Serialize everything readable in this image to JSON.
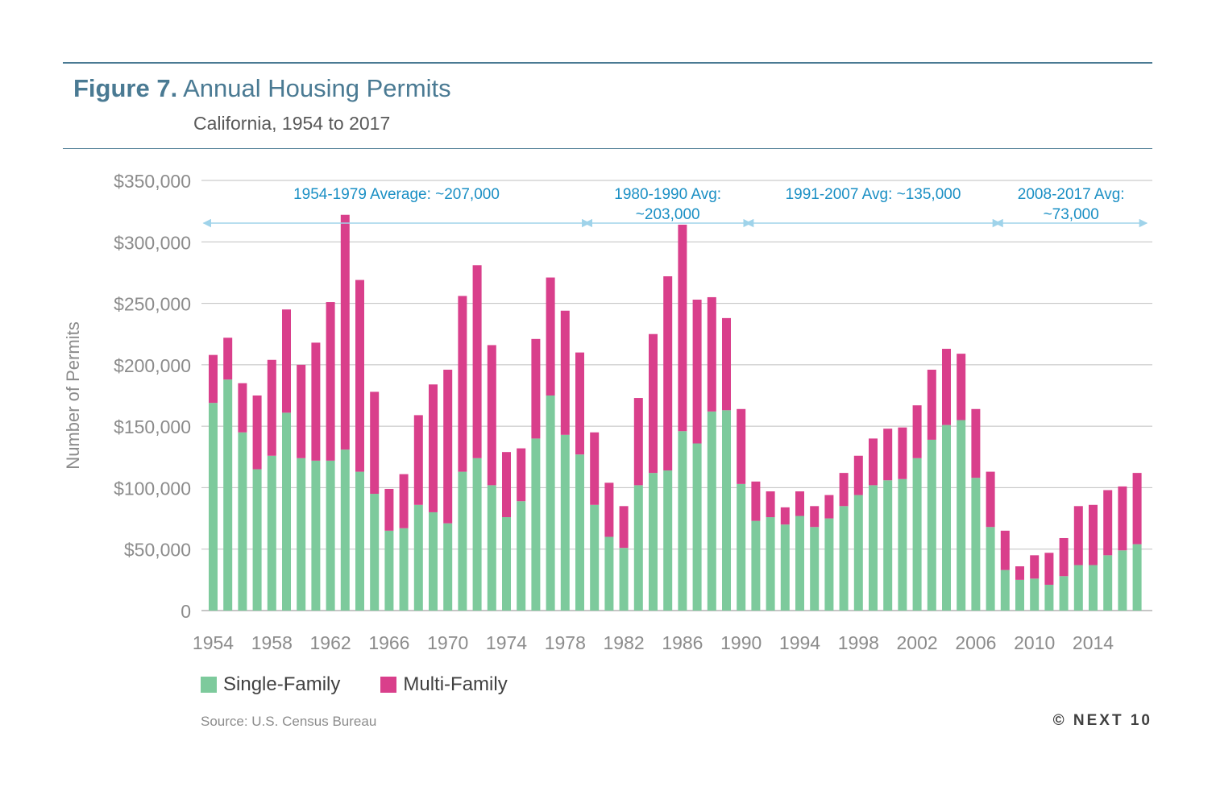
{
  "figure": {
    "label": "Figure 7.",
    "title": "Annual Housing Permits",
    "subtitle": "California, 1954 to 2017"
  },
  "legend": {
    "single": "Single-Family",
    "multi": "Multi-Family"
  },
  "source": "Source: U.S. Census Bureau",
  "brand": "© NEXT 10",
  "colors": {
    "single": "#7dca9c",
    "multi": "#d93f8b",
    "annotation": "#1a8fc4",
    "arrow": "#9fd3ea",
    "grid": "#bfbfbf",
    "axis_text": "#8c8c8c"
  },
  "chart_data": {
    "type": "bar",
    "stacked": true,
    "ylabel": "Number of Permits",
    "ylim": [
      0,
      350000
    ],
    "y_ticks": [
      "0",
      "$50,000",
      "$100,000",
      "$150,000",
      "$200,000",
      "$250,000",
      "$300,000",
      "$350,000"
    ],
    "y_tick_values": [
      0,
      50000,
      100000,
      150000,
      200000,
      250000,
      300000,
      350000
    ],
    "x_tick_labels": [
      "1954",
      "1958",
      "1962",
      "1966",
      "1970",
      "1974",
      "1978",
      "1982",
      "1986",
      "1990",
      "1994",
      "1998",
      "2002",
      "2006",
      "2010",
      "2014"
    ],
    "categories": [
      1954,
      1955,
      1956,
      1957,
      1958,
      1959,
      1960,
      1961,
      1962,
      1963,
      1964,
      1965,
      1966,
      1967,
      1968,
      1969,
      1970,
      1971,
      1972,
      1973,
      1974,
      1975,
      1976,
      1977,
      1978,
      1979,
      1980,
      1981,
      1982,
      1983,
      1984,
      1985,
      1986,
      1987,
      1988,
      1989,
      1990,
      1991,
      1992,
      1993,
      1994,
      1995,
      1996,
      1997,
      1998,
      1999,
      2000,
      2001,
      2002,
      2003,
      2004,
      2005,
      2006,
      2007,
      2008,
      2009,
      2010,
      2011,
      2012,
      2013,
      2014,
      2015,
      2016,
      2017
    ],
    "series": [
      {
        "name": "Single-Family",
        "color": "#7dca9c",
        "values": [
          169000,
          188000,
          145000,
          115000,
          126000,
          161000,
          124000,
          122000,
          122000,
          131000,
          113000,
          95000,
          65000,
          67000,
          86000,
          80000,
          71000,
          113000,
          124000,
          102000,
          76000,
          89000,
          140000,
          175000,
          143000,
          127000,
          86000,
          60000,
          51000,
          102000,
          112000,
          114000,
          146000,
          136000,
          162000,
          163000,
          103000,
          73000,
          76000,
          70000,
          77000,
          68000,
          75000,
          85000,
          94000,
          102000,
          106000,
          107000,
          124000,
          139000,
          151000,
          155000,
          108000,
          68000,
          33000,
          25000,
          26000,
          21000,
          28000,
          37000,
          37000,
          45000,
          49000,
          54000
        ]
      },
      {
        "name": "Multi-Family",
        "color": "#d93f8b",
        "values": [
          39000,
          34000,
          40000,
          60000,
          78000,
          84000,
          76000,
          96000,
          129000,
          191000,
          156000,
          83000,
          34000,
          44000,
          73000,
          104000,
          125000,
          143000,
          157000,
          114000,
          53000,
          43000,
          81000,
          96000,
          101000,
          83000,
          59000,
          44000,
          34000,
          71000,
          113000,
          158000,
          168000,
          117000,
          93000,
          75000,
          61000,
          32000,
          21000,
          14000,
          20000,
          17000,
          19000,
          27000,
          32000,
          38000,
          42000,
          42000,
          43000,
          57000,
          62000,
          54000,
          56000,
          45000,
          32000,
          11000,
          19000,
          26000,
          31000,
          48000,
          49000,
          53000,
          52000,
          58000
        ]
      }
    ],
    "annotations": [
      {
        "text_lines": [
          "1954-1979 Average: ~207,000"
        ],
        "start": 1954,
        "end": 1979
      },
      {
        "text_lines": [
          "1980-1990 Avg:",
          "~203,000"
        ],
        "start": 1980,
        "end": 1990
      },
      {
        "text_lines": [
          "1991-2007 Avg: ~135,000"
        ],
        "start": 1991,
        "end": 2007
      },
      {
        "text_lines": [
          "2008-2017 Avg:",
          "~73,000"
        ],
        "start": 2008,
        "end": 2017
      }
    ],
    "grid": true,
    "legend_position": "bottom-left"
  }
}
